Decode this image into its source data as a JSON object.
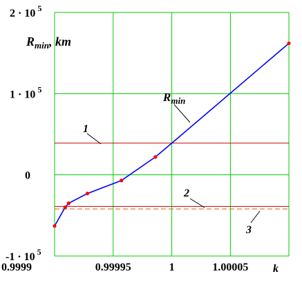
{
  "chart_data": {
    "type": "line",
    "ylabel_main": "R",
    "ylabel_sub": "min",
    "ylabel_suffix": ", km",
    "xlabel": "k",
    "xlim": [
      0.9999,
      1.0000999
    ],
    "ylim": [
      -100000,
      200000
    ],
    "grid": true,
    "x_ticks": [
      {
        "value": 0.9999,
        "label": "0.9999"
      },
      {
        "value": 0.99995,
        "label": "0.99995"
      },
      {
        "value": 1.0,
        "label": "1"
      },
      {
        "value": 1.00005,
        "label": "1.00005"
      }
    ],
    "y_ticks": [
      {
        "value": 200000,
        "mantissa": "2",
        "dot": "·",
        "base": "10",
        "exp": "5"
      },
      {
        "value": 100000,
        "mantissa": "1",
        "dot": "·",
        "base": "10",
        "exp": "5"
      },
      {
        "value": 0,
        "mantissa": "0",
        "dot": "",
        "base": "",
        "exp": ""
      },
      {
        "value": -100000,
        "mantissa": "-1",
        "dot": "·",
        "base": "10",
        "exp": "5"
      }
    ],
    "series": [
      {
        "label_main": "R",
        "label_sub": "min",
        "color": "#0000ff",
        "x": [
          0.9999,
          0.999909,
          0.999912,
          0.999928,
          0.999957,
          0.999986,
          1.0,
          1.0000999
        ],
        "y": [
          -63000,
          -40000,
          -35000,
          -23000,
          -7000,
          22000,
          39000,
          162000
        ],
        "markers_x": [
          0.9999,
          0.999909,
          0.999912,
          0.999928,
          0.999957,
          0.999986,
          1.0000999
        ],
        "markers_y": [
          -63000,
          -40000,
          -35000,
          -23000,
          -7000,
          22000,
          162000
        ],
        "marker_color": "#ff0000"
      }
    ],
    "hlines": [
      {
        "label": "1",
        "y": 39000,
        "color": "#cc0000",
        "style": "solid"
      },
      {
        "label": "2",
        "y": -39000,
        "color": "#cc0000",
        "style": "solid"
      },
      {
        "label": "3",
        "y": -42000,
        "color": "#cc6600",
        "style": "dashed"
      }
    ]
  }
}
